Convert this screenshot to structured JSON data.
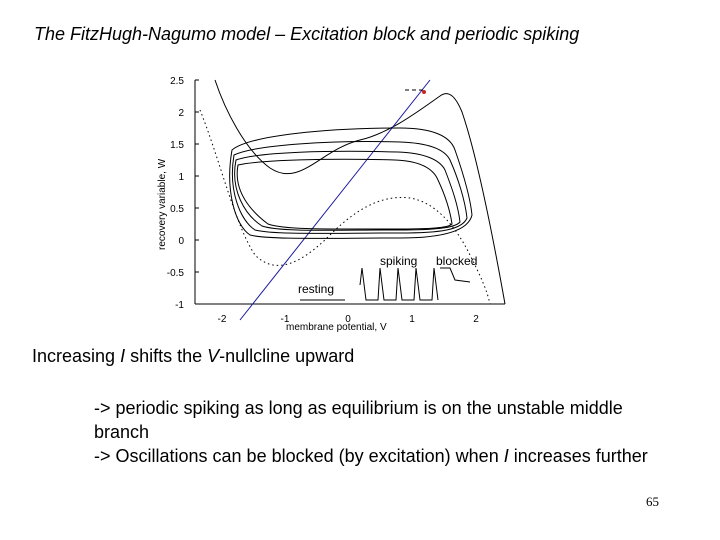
{
  "title": "The FitzHugh-Nagumo model – Excitation block and periodic spiking",
  "chart_data": {
    "type": "line",
    "title": "",
    "xlabel": "membrane potential, V",
    "ylabel": "recovery variable, W",
    "xlim": [
      -2.6,
      2.6
    ],
    "ylim": [
      -1,
      2.5
    ],
    "xticks": [
      "-2",
      "-1",
      "0",
      "1",
      "2"
    ],
    "yticks": [
      "2.5",
      "2",
      "1.5",
      "1",
      "0.5",
      "0",
      "-0.5",
      "-1"
    ],
    "grid": false,
    "annotations": [
      "spiking",
      "blocked",
      "resting"
    ]
  },
  "body": {
    "line1_pre": "Increasing ",
    "line1_i": "I",
    "line1_mid": " shifts the ",
    "line1_v": "V",
    "line1_post": "-nullcline upward",
    "bullet1": "-> periodic spiking as long as equilibrium is on the unstable middle",
    "bullet1_cont": "branch",
    "bullet2_pre": "-> Oscillations can be blocked (by excitation) when ",
    "bullet2_i": "I",
    "bullet2_post": " increases further"
  },
  "page_number": "65"
}
